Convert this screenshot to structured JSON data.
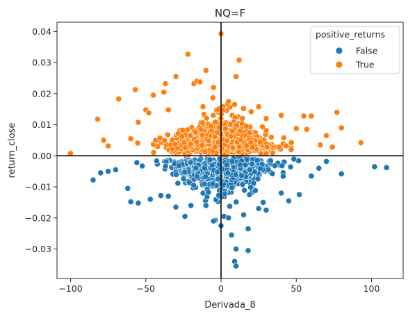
{
  "chart_data": {
    "type": "scatter",
    "title": "NQ=F",
    "xlabel": "Derivada_8",
    "ylabel": "return_close",
    "xlim": [
      -109,
      121
    ],
    "ylim": [
      -0.0395,
      0.043
    ],
    "xticks": [
      -100,
      -50,
      0,
      50,
      100
    ],
    "xtick_labels": [
      "−100",
      "−50",
      "0",
      "50",
      "100"
    ],
    "yticks": [
      -0.03,
      -0.02,
      -0.01,
      0.0,
      0.01,
      0.02,
      0.03,
      0.04
    ],
    "ytick_labels": [
      "−0.03",
      "−0.02",
      "−0.01",
      "0.00",
      "0.01",
      "0.02",
      "0.03",
      "0.04"
    ],
    "reference_lines": {
      "x": 0,
      "y": 0
    },
    "legend": {
      "title": "positive_returns",
      "placement": "top-right",
      "entries": [
        {
          "label": "False",
          "color": "#1f77b4"
        },
        {
          "label": "True",
          "color": "#ff7f0e"
        }
      ]
    },
    "series": [
      {
        "name": "False",
        "color": "#1f77b4",
        "distribution": {
          "x_range": [
            -85,
            110
          ],
          "y_range": [
            -0.0355,
            0
          ],
          "cluster_x": [
            -45,
            45
          ],
          "count": 700
        },
        "points": [
          [
            -85,
            -0.0078
          ],
          [
            -80,
            -0.0055
          ],
          [
            -75,
            -0.005
          ],
          [
            -70,
            -0.0045
          ],
          [
            -62,
            -0.0105
          ],
          [
            -60,
            -0.0148
          ],
          [
            -55,
            -0.0152
          ],
          [
            -47,
            -0.014
          ],
          [
            -40,
            -0.0128
          ],
          [
            -35,
            -0.013
          ],
          [
            -30,
            -0.0165
          ],
          [
            -24,
            -0.0195
          ],
          [
            -20,
            -0.016
          ],
          [
            -10,
            -0.016
          ],
          [
            -5,
            -0.021
          ],
          [
            0,
            -0.0225
          ],
          [
            2,
            -0.0195
          ],
          [
            5,
            -0.02
          ],
          [
            7,
            -0.0255
          ],
          [
            10,
            -0.03
          ],
          [
            9,
            -0.034
          ],
          [
            10,
            -0.0355
          ],
          [
            15,
            -0.019
          ],
          [
            18,
            -0.0235
          ],
          [
            18,
            -0.0305
          ],
          [
            25,
            -0.017
          ],
          [
            28,
            -0.015
          ],
          [
            30,
            -0.0175
          ],
          [
            40,
            -0.012
          ],
          [
            45,
            -0.0145
          ],
          [
            52,
            -0.0125
          ],
          [
            60,
            -0.0065
          ],
          [
            65,
            -0.004
          ],
          [
            70,
            -0.0018
          ],
          [
            80,
            -0.0058
          ],
          [
            102,
            -0.0035
          ],
          [
            110,
            -0.0038
          ]
        ]
      },
      {
        "name": "True",
        "color": "#ff7f0e",
        "distribution": {
          "x_range": [
            -100,
            93
          ],
          "y_range": [
            0,
            0.0393
          ],
          "cluster_x": [
            -45,
            45
          ],
          "count": 700
        },
        "points": [
          [
            -100,
            0.0008
          ],
          [
            -82,
            0.0118
          ],
          [
            -78,
            0.005
          ],
          [
            -75,
            0.0032
          ],
          [
            -68,
            0.0183
          ],
          [
            -60,
            0.0055
          ],
          [
            -57,
            0.0213
          ],
          [
            -55,
            0.0108
          ],
          [
            -50,
            0.0148
          ],
          [
            -48,
            0.0138
          ],
          [
            -45,
            0.0195
          ],
          [
            -38,
            0.0205
          ],
          [
            -37,
            0.0232
          ],
          [
            -35,
            0.0148
          ],
          [
            -30,
            0.0255
          ],
          [
            -22,
            0.0327
          ],
          [
            -18,
            0.0232
          ],
          [
            -16,
            0.024
          ],
          [
            -14,
            0.0238
          ],
          [
            -12,
            0.0158
          ],
          [
            -10,
            0.0275
          ],
          [
            -5,
            0.022
          ],
          [
            0,
            0.0393
          ],
          [
            5,
            0.0175
          ],
          [
            10,
            0.0255
          ],
          [
            12,
            0.0308
          ],
          [
            15,
            0.0152
          ],
          [
            20,
            0.0142
          ],
          [
            25,
            0.0158
          ],
          [
            30,
            0.012
          ],
          [
            40,
            0.013
          ],
          [
            50,
            0.0088
          ],
          [
            55,
            0.0128
          ],
          [
            57,
            0.0085
          ],
          [
            60,
            0.0128
          ],
          [
            66,
            0.0035
          ],
          [
            70,
            0.0065
          ],
          [
            74,
            0.0028
          ],
          [
            77,
            0.014
          ],
          [
            80,
            0.009
          ],
          [
            93,
            0.0042
          ]
        ]
      }
    ]
  }
}
